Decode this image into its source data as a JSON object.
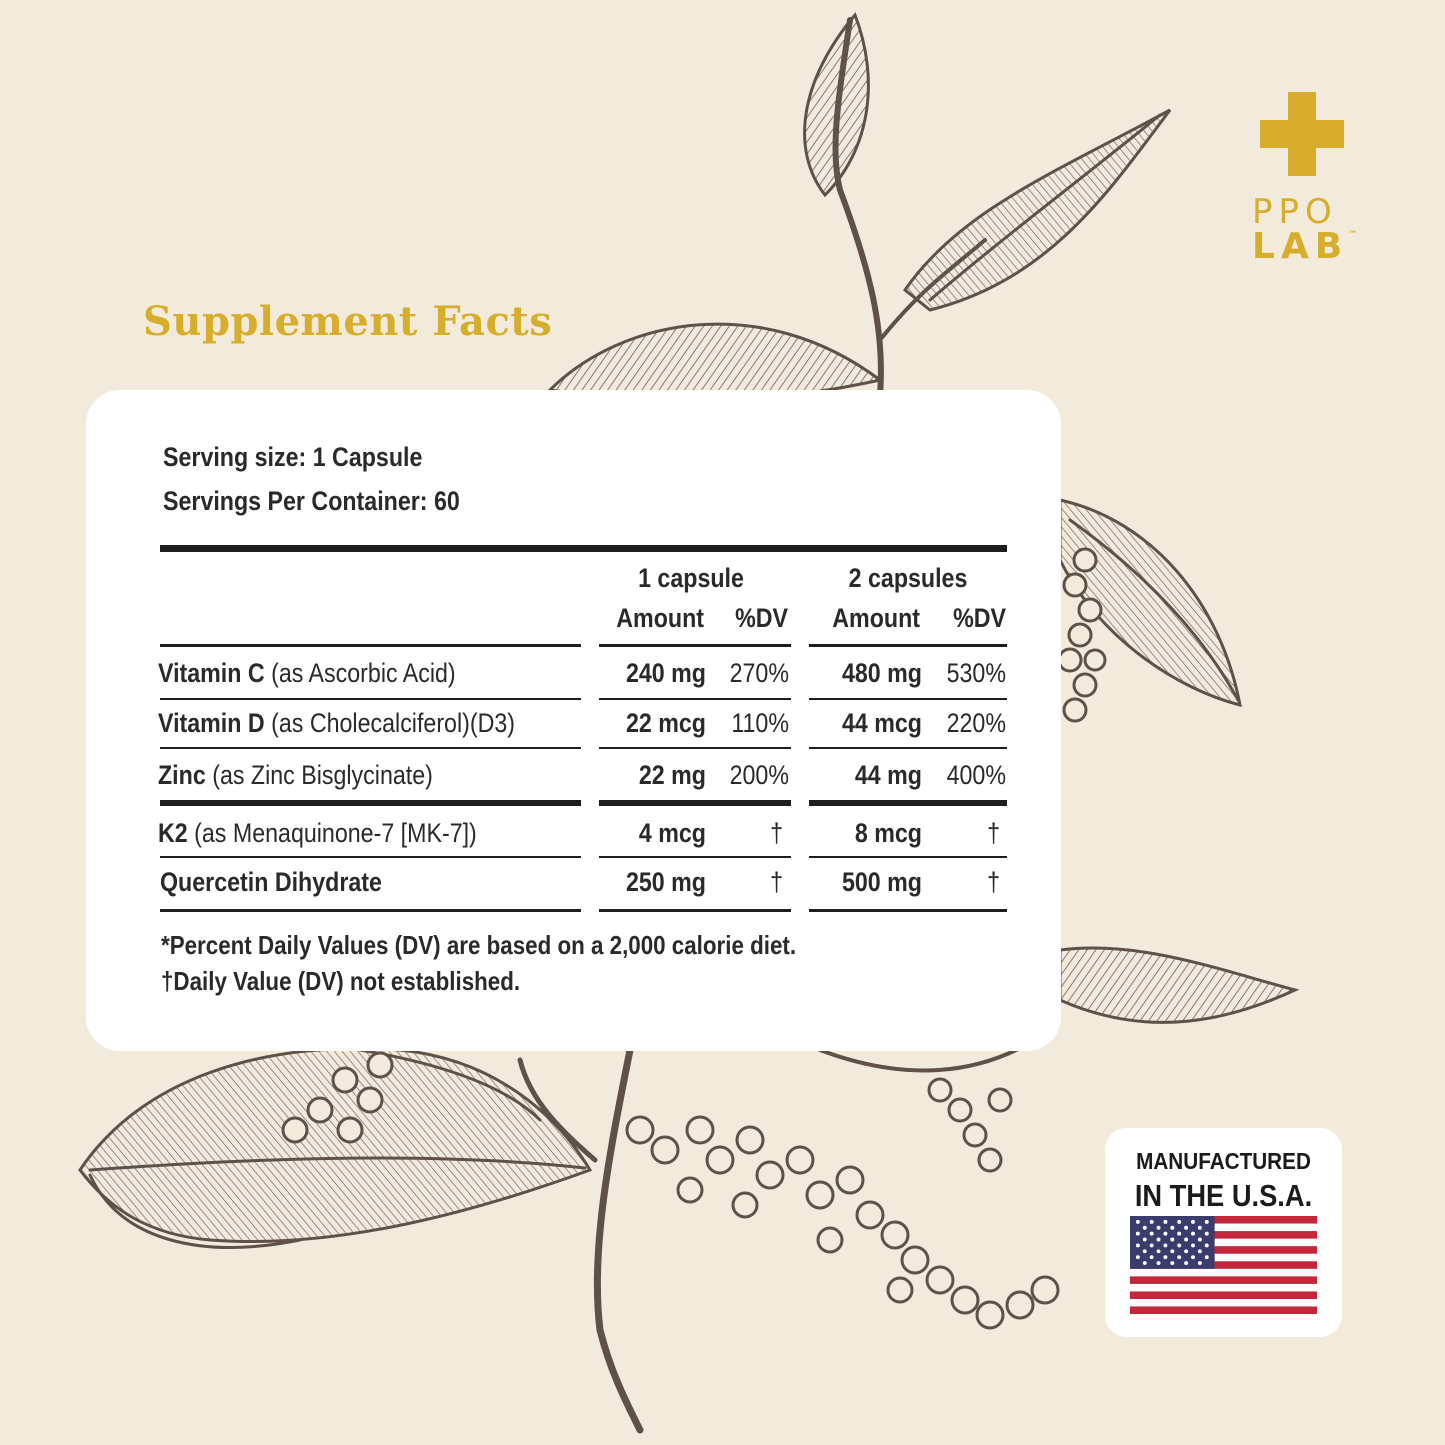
{
  "brand": {
    "line1": "PPO",
    "line2": "LAB",
    "tm": "™"
  },
  "title": "Supplement Facts",
  "serving": {
    "size": "Serving size: 1 Capsule",
    "per_container": "Servings Per Container: 60"
  },
  "columns": {
    "group1": "1 capsule",
    "group2": "2 capsules",
    "amount": "Amount",
    "dv": "%DV"
  },
  "rows": [
    {
      "name": "Vitamin C",
      "detail": "(as Ascorbic Acid)",
      "amt1": "240 mg",
      "dv1": "270%",
      "amt2": "480 mg",
      "dv2": "530%"
    },
    {
      "name": "Vitamin D",
      "detail": "(as Cholecalciferol)(D3)",
      "amt1": "22 mcg",
      "dv1": "110%",
      "amt2": "44 mcg",
      "dv2": "220%"
    },
    {
      "name": "Zinc",
      "detail": "(as Zinc Bisglycinate)",
      "amt1": "22 mg",
      "dv1": "200%",
      "amt2": "44 mg",
      "dv2": "400%"
    },
    {
      "name": "K2",
      "detail": "(as Menaquinone-7 [MK-7])",
      "amt1": "4 mcg",
      "dv1": "†",
      "amt2": "8 mcg",
      "dv2": "†"
    },
    {
      "name": "Quercetin Dihydrate",
      "detail": "",
      "amt1": "250 mg",
      "dv1": "†",
      "amt2": "500 mg",
      "dv2": "†"
    }
  ],
  "footnotes": {
    "line1": "*Percent Daily Values (DV) are based on a 2,000 calorie diet.",
    "line2": "†Daily Value (DV) not established."
  },
  "badge": {
    "line1": "MANUFACTURED",
    "line2": "IN THE U.S.A."
  },
  "colors": {
    "background": "#f2ebdc",
    "accent": "#d7ad2c",
    "illustration": "#6b5d52",
    "text": "#2a2a2a"
  }
}
